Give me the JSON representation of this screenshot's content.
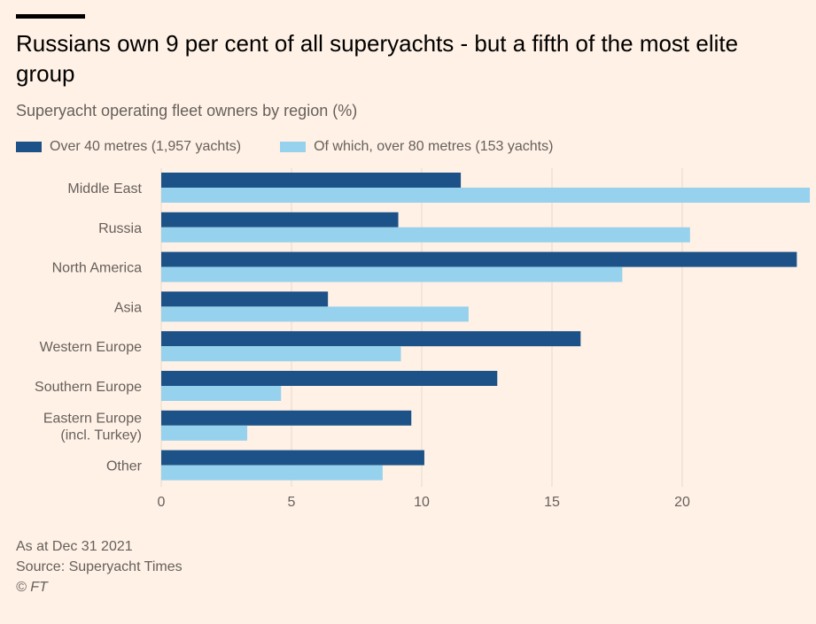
{
  "title": "Russians own 9 per cent of all superyachts - but a fifth of the most elite group",
  "subtitle": "Superyacht operating fleet owners by region (%)",
  "colors": {
    "background": "#FFF1E5",
    "over40": "#1D5289",
    "over80": "#96D2EE",
    "grid": "#E6D9CE",
    "text": "#66605C"
  },
  "chart_data": {
    "type": "bar",
    "orientation": "horizontal",
    "categories": [
      "Middle East",
      "Russia",
      "North America",
      "Asia",
      "Western Europe",
      "Southern Europe",
      "Eastern Europe\n(incl. Turkey)",
      "Other"
    ],
    "series": [
      {
        "name": "Over 40 metres (1,957 yachts)",
        "values": [
          11.5,
          9.1,
          24.4,
          6.4,
          16.1,
          12.9,
          9.6,
          10.1
        ]
      },
      {
        "name": "Of which, over 80 metres (153 yachts)",
        "values": [
          24.9,
          20.3,
          17.7,
          11.8,
          9.2,
          4.6,
          3.3,
          8.5
        ]
      }
    ],
    "xlim": [
      0,
      25
    ],
    "xticks": [
      0,
      5,
      10,
      15,
      20
    ],
    "grid": "vertical",
    "legend": "top-left"
  },
  "footer": {
    "note": "As at Dec 31 2021",
    "source": "Source: Superyacht Times",
    "copyright": "© FT"
  }
}
